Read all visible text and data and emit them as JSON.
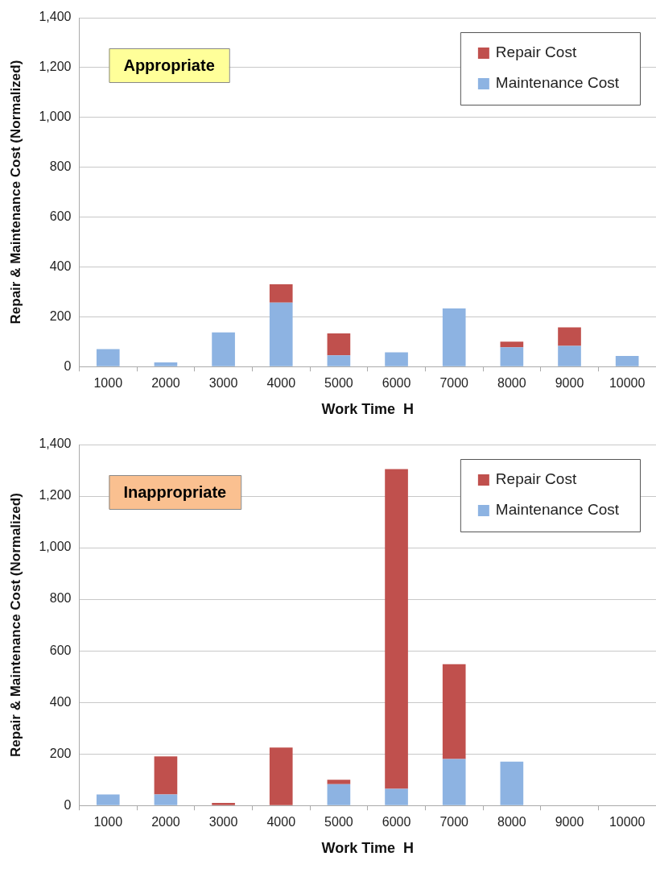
{
  "chart_data": [
    {
      "type": "bar",
      "stacked": true,
      "xlabel": "Work Time  H",
      "ylabel": "Repair & Maintenance Cost (Normalized)",
      "annotations": [
        "Appropriate"
      ],
      "categories": [
        "1000",
        "2000",
        "3000",
        "4000",
        "5000",
        "6000",
        "7000",
        "8000",
        "9000",
        "10000"
      ],
      "series": [
        {
          "name": "Maintenance Cost",
          "color": "#8db3e2",
          "values": [
            70,
            17,
            137,
            257,
            45,
            57,
            233,
            77,
            83,
            43
          ]
        },
        {
          "name": "Repair Cost",
          "color": "#c0504d",
          "values": [
            null,
            null,
            null,
            73,
            88,
            null,
            null,
            23,
            74,
            null
          ]
        }
      ],
      "ylim": [
        0,
        1400
      ],
      "yticks": [
        {
          "value": 0,
          "label": "0"
        },
        {
          "value": 200,
          "label": "200"
        },
        {
          "value": 400,
          "label": "400"
        },
        {
          "value": 600,
          "label": "600"
        },
        {
          "value": 800,
          "label": "800"
        },
        {
          "value": 1000,
          "label": "1,000"
        },
        {
          "value": 1200,
          "label": "1,200"
        },
        {
          "value": 1400,
          "label": "1,400"
        }
      ],
      "grid": "y",
      "legend": "top right"
    },
    {
      "type": "bar",
      "stacked": true,
      "xlabel": "Work Time  H",
      "ylabel": "Repair & Maintenance Cost (Normalized)",
      "annotations": [
        "Inappropriate"
      ],
      "categories": [
        "1000",
        "2000",
        "3000",
        "4000",
        "5000",
        "6000",
        "7000",
        "8000",
        "9000",
        "10000"
      ],
      "series": [
        {
          "name": "Maintenance Cost",
          "color": "#8db3e2",
          "values": [
            43,
            43,
            null,
            null,
            83,
            65,
            180,
            170,
            null,
            null
          ]
        },
        {
          "name": "Repair Cost",
          "color": "#c0504d",
          "values": [
            null,
            147,
            10,
            225,
            17,
            1240,
            368,
            null,
            null,
            null
          ]
        }
      ],
      "ylim": [
        0,
        1400
      ],
      "yticks": [
        {
          "value": 0,
          "label": "0"
        },
        {
          "value": 200,
          "label": "200"
        },
        {
          "value": 400,
          "label": "400"
        },
        {
          "value": 600,
          "label": "600"
        },
        {
          "value": 800,
          "label": "800"
        },
        {
          "value": 1000,
          "label": "1,000"
        },
        {
          "value": 1200,
          "label": "1,200"
        },
        {
          "value": 1400,
          "label": "1,400"
        }
      ],
      "grid": "y",
      "legend": "top right"
    }
  ]
}
